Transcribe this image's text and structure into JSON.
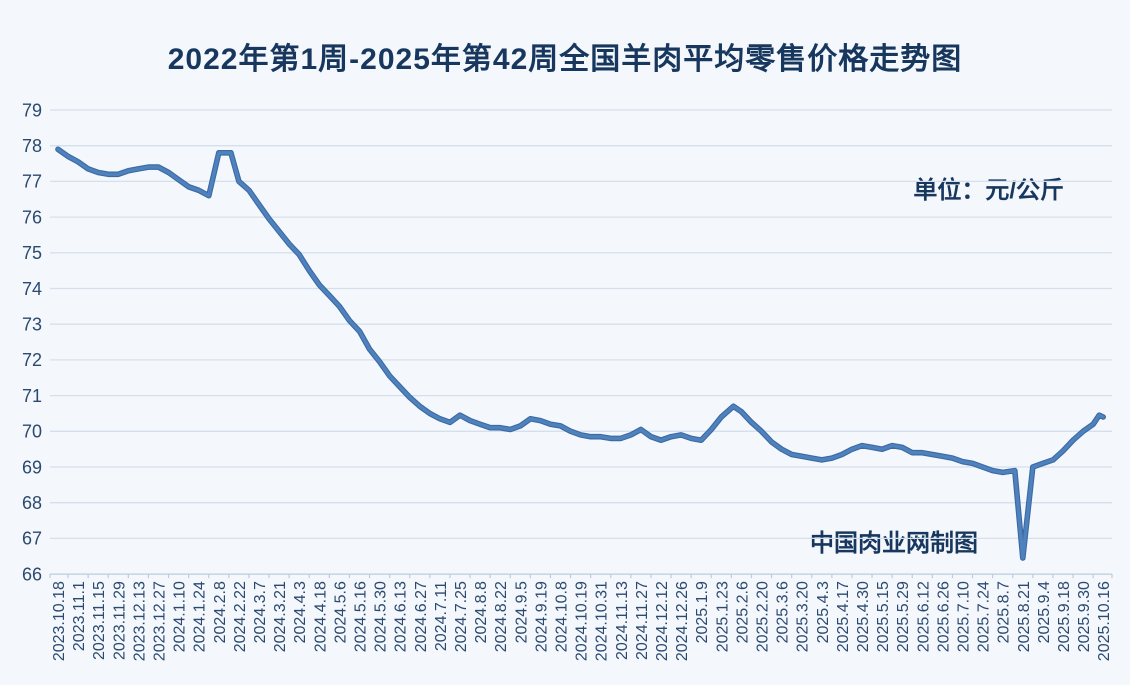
{
  "chart_data": {
    "type": "line",
    "title": "2022年第1周-2025年第42周全国羊肉平均零售价格走势图",
    "unit_label": "单位：元/公斤",
    "credit": "中国肉业网制图",
    "ylabel": "",
    "xlabel": "",
    "ylim": [
      66,
      79
    ],
    "y_ticks": [
      79,
      78,
      77,
      76,
      75,
      74,
      73,
      72,
      71,
      70,
      69,
      68,
      67,
      66
    ],
    "grid": "horizontal-on",
    "legend_position": "none",
    "x_labels": [
      "2023.10.18",
      "2023.11.1",
      "2023.11.15",
      "2023.11.29",
      "2023.12.13",
      "2023.12.27",
      "2024.1.10",
      "2024.1.24",
      "2024.2.8",
      "2024.2.22",
      "2024.3.7",
      "2024.3.21",
      "2024.4.3",
      "2024.4.18",
      "2024.5.6",
      "2024.5.16",
      "2024.5.30",
      "2024.6.13",
      "2024.6.27",
      "2024.7.11",
      "2024.7.25",
      "2024.8.8",
      "2024.8.22",
      "2024.9.5",
      "2024.9.19",
      "2024.10.8",
      "2024.10.19",
      "2024.10.31",
      "2024.11.13",
      "2024.11.27",
      "2024.12.12",
      "2024.12.26",
      "2025.1.9",
      "2025.1.23",
      "2025.2.6",
      "2025.2.20",
      "2025.3.6",
      "2025.3.20",
      "2025.4.3",
      "2025.4.17",
      "2025.4.30",
      "2025.5.15",
      "2025.5.29",
      "2025.6.12",
      "2025.6.26",
      "2025.7.10",
      "2025.7.24",
      "2025.8.7",
      "2025.8.21",
      "2025.9.4",
      "2025.9.18",
      "2025.9.30",
      "2025.10.16"
    ],
    "series": [
      {
        "points": [
          [
            0,
            77.9
          ],
          [
            0.5,
            77.7
          ],
          [
            1,
            77.55
          ],
          [
            1.5,
            77.35
          ],
          [
            2,
            77.25
          ],
          [
            2.5,
            77.2
          ],
          [
            3,
            77.2
          ],
          [
            3.5,
            77.3
          ],
          [
            4,
            77.35
          ],
          [
            4.5,
            77.4
          ],
          [
            5,
            77.4
          ],
          [
            5.5,
            77.25
          ],
          [
            6,
            77.05
          ],
          [
            6.5,
            76.85
          ],
          [
            7,
            76.75
          ],
          [
            7.5,
            76.6
          ],
          [
            8,
            77.8
          ],
          [
            8.6,
            77.8
          ],
          [
            9,
            77.0
          ],
          [
            9.5,
            76.75
          ],
          [
            10,
            76.35
          ],
          [
            10.5,
            75.95
          ],
          [
            11,
            75.6
          ],
          [
            11.5,
            75.25
          ],
          [
            12,
            74.95
          ],
          [
            12.5,
            74.5
          ],
          [
            13,
            74.1
          ],
          [
            13.5,
            73.8
          ],
          [
            14,
            73.5
          ],
          [
            14.5,
            73.1
          ],
          [
            15,
            72.8
          ],
          [
            15.5,
            72.3
          ],
          [
            16,
            71.95
          ],
          [
            16.5,
            71.55
          ],
          [
            17,
            71.25
          ],
          [
            17.5,
            70.95
          ],
          [
            18,
            70.7
          ],
          [
            18.5,
            70.5
          ],
          [
            19,
            70.35
          ],
          [
            19.5,
            70.25
          ],
          [
            20,
            70.45
          ],
          [
            20.5,
            70.3
          ],
          [
            21,
            70.2
          ],
          [
            21.5,
            70.1
          ],
          [
            22,
            70.1
          ],
          [
            22.5,
            70.05
          ],
          [
            23,
            70.15
          ],
          [
            23.5,
            70.35
          ],
          [
            24,
            70.3
          ],
          [
            24.5,
            70.2
          ],
          [
            25,
            70.15
          ],
          [
            25.5,
            70.0
          ],
          [
            26,
            69.9
          ],
          [
            26.5,
            69.85
          ],
          [
            27,
            69.85
          ],
          [
            27.5,
            69.8
          ],
          [
            28,
            69.8
          ],
          [
            28.5,
            69.9
          ],
          [
            29,
            70.05
          ],
          [
            29.5,
            69.85
          ],
          [
            30,
            69.75
          ],
          [
            30.5,
            69.85
          ],
          [
            31,
            69.9
          ],
          [
            31.5,
            69.8
          ],
          [
            32,
            69.75
          ],
          [
            32.5,
            70.05
          ],
          [
            33,
            70.4
          ],
          [
            33.6,
            70.7
          ],
          [
            34,
            70.55
          ],
          [
            34.5,
            70.25
          ],
          [
            35,
            70.0
          ],
          [
            35.5,
            69.7
          ],
          [
            36,
            69.5
          ],
          [
            36.5,
            69.35
          ],
          [
            37,
            69.3
          ],
          [
            37.5,
            69.25
          ],
          [
            38,
            69.2
          ],
          [
            38.5,
            69.25
          ],
          [
            39,
            69.35
          ],
          [
            39.5,
            69.5
          ],
          [
            40,
            69.6
          ],
          [
            40.5,
            69.55
          ],
          [
            41,
            69.5
          ],
          [
            41.5,
            69.6
          ],
          [
            42,
            69.55
          ],
          [
            42.5,
            69.4
          ],
          [
            43,
            69.4
          ],
          [
            43.5,
            69.35
          ],
          [
            44,
            69.3
          ],
          [
            44.5,
            69.25
          ],
          [
            45,
            69.15
          ],
          [
            45.5,
            69.1
          ],
          [
            46,
            69.0
          ],
          [
            46.5,
            68.9
          ],
          [
            47,
            68.85
          ],
          [
            47.6,
            68.9
          ],
          [
            48,
            66.45
          ],
          [
            48.5,
            69.0
          ],
          [
            49,
            69.1
          ],
          [
            49.5,
            69.2
          ],
          [
            50,
            69.45
          ],
          [
            50.5,
            69.75
          ],
          [
            51,
            70.0
          ],
          [
            51.5,
            70.2
          ],
          [
            51.8,
            70.45
          ],
          [
            52,
            70.4
          ]
        ]
      }
    ],
    "colors": {
      "line": "#4f81bd",
      "line_edge": "#3a6aa3",
      "title_text": "#17375e",
      "tick_text": "#2b4a70",
      "gridline": "#d6e0ec",
      "axis_line": "#bccddf",
      "background": "#f4f7fb"
    }
  }
}
